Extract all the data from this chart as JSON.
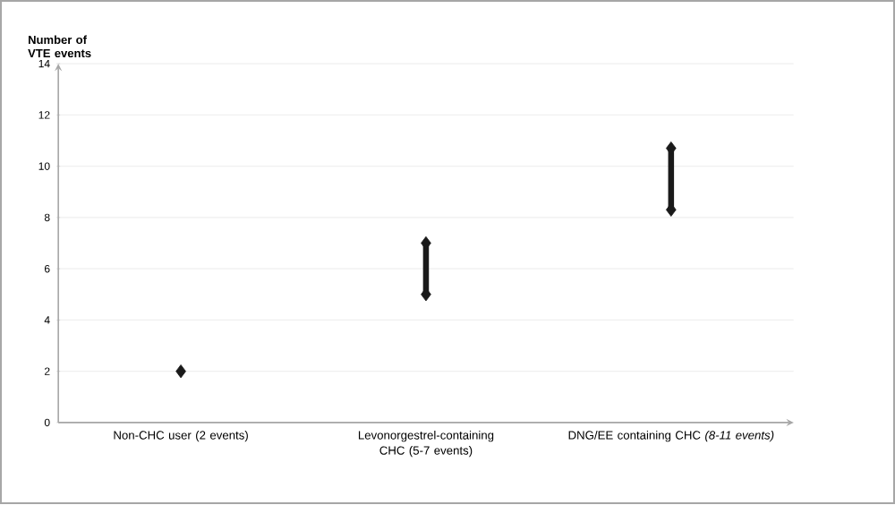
{
  "chart_data": {
    "type": "scatter",
    "ylabel": "Number of VTE events",
    "categories": [
      "Non-CHC user (2 events)",
      "Levonorgestrel-containing CHC (5-7 events)",
      "DNG/EE containing CHC *(8-11 events)*"
    ],
    "series": [
      {
        "type": "bar",
        "color": "#1a1a1a",
        "base": [
          null,
          5,
          8.3
        ],
        "values": [
          null,
          2,
          2.4
        ]
      },
      {
        "color": "#1a1a1a",
        "values": [
          2,
          5,
          8.3
        ]
      },
      {
        "color": "#1a1a1a",
        "values": [
          null,
          7,
          10.7
        ]
      }
    ],
    "marker": "diamond",
    "ylim": [
      0,
      14
    ],
    "yticks": [
      0,
      2,
      4,
      6,
      8,
      10,
      12,
      14
    ],
    "grid": "y"
  }
}
